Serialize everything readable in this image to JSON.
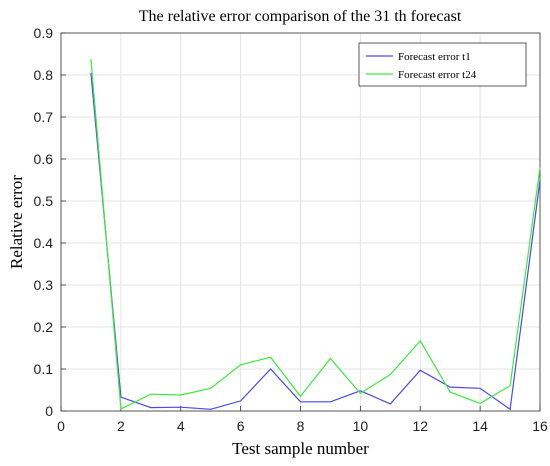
{
  "chart_data": {
    "type": "line",
    "title": "The relative error comparison of the 31 th forecast",
    "xlabel": "Test sample number",
    "ylabel": "Relative error",
    "xlim": [
      0,
      16
    ],
    "ylim": [
      0,
      0.9
    ],
    "xticks": [
      0,
      2,
      4,
      6,
      8,
      10,
      12,
      14,
      16
    ],
    "yticks": [
      0,
      0.1,
      0.2,
      0.3,
      0.4,
      0.5,
      0.6,
      0.7,
      0.8,
      0.9
    ],
    "grid": true,
    "legend_position": "top-right",
    "x": [
      1,
      2,
      3,
      4,
      5,
      6,
      7,
      8,
      9,
      10,
      11,
      12,
      13,
      14,
      15,
      16
    ],
    "series": [
      {
        "name": "Forecast error t1",
        "color": "#4a4ae6",
        "values": [
          0.805,
          0.033,
          0.008,
          0.009,
          0.004,
          0.024,
          0.1,
          0.022,
          0.022,
          0.048,
          0.017,
          0.097,
          0.057,
          0.054,
          0.004,
          0.55
        ]
      },
      {
        "name": "Forecast error t24",
        "color": "#3dea3d",
        "values": [
          0.838,
          0.005,
          0.04,
          0.038,
          0.054,
          0.11,
          0.128,
          0.035,
          0.125,
          0.042,
          0.087,
          0.167,
          0.045,
          0.018,
          0.06,
          0.58
        ]
      }
    ]
  }
}
